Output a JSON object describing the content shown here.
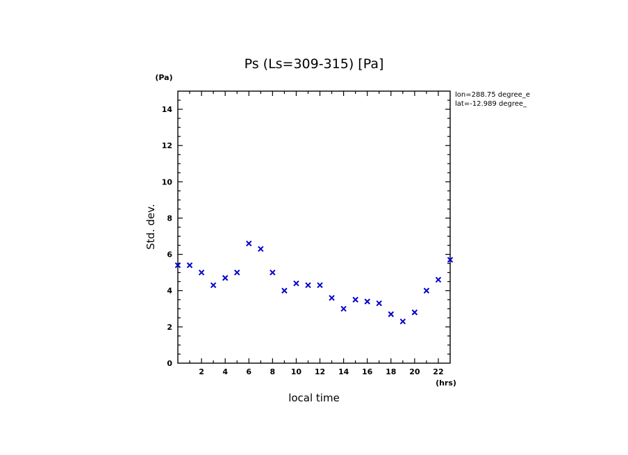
{
  "chart_data": {
    "type": "scatter",
    "title": "Ps (Ls=309-315) [Pa]",
    "xlabel": "local time",
    "ylabel": "Std. dev.",
    "x_unit": "(hrs)",
    "y_unit": "(Pa)",
    "xlim": [
      0,
      23
    ],
    "ylim": [
      0,
      15
    ],
    "x_ticks": [
      2,
      4,
      6,
      8,
      10,
      12,
      14,
      16,
      18,
      20,
      22
    ],
    "y_ticks": [
      0,
      2,
      4,
      6,
      8,
      10,
      12,
      14
    ],
    "annotations": [
      "lon=288.75 degree_e",
      "lat=-12.989 degree_"
    ],
    "marker": "x",
    "color": "#0000cc",
    "grid": false,
    "series": [
      {
        "x": [
          0,
          1,
          2,
          3,
          4,
          5,
          6,
          7,
          8,
          9,
          10,
          11,
          12,
          13,
          14,
          15,
          16,
          17,
          18,
          19,
          20,
          21,
          22,
          23
        ],
        "y": [
          5.4,
          5.4,
          5.0,
          4.3,
          4.7,
          5.0,
          6.6,
          6.3,
          5.0,
          4.0,
          4.4,
          4.3,
          4.3,
          3.6,
          3.0,
          3.5,
          3.4,
          3.3,
          2.7,
          2.3,
          2.8,
          4.0,
          4.6,
          5.7
        ]
      }
    ]
  }
}
